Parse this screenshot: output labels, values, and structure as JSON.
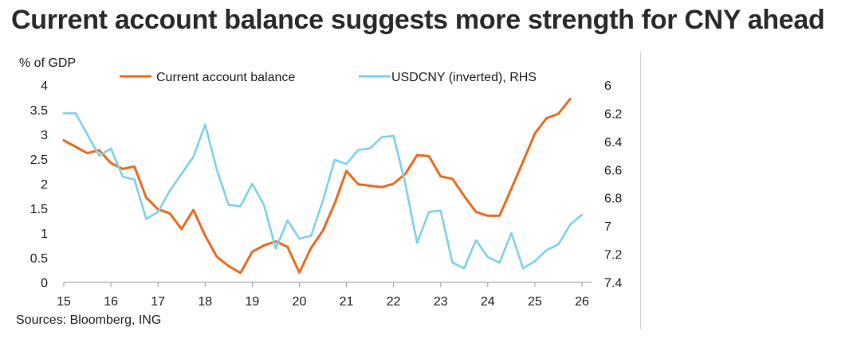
{
  "chart_data": {
    "type": "line",
    "title": "Current account balance suggests more strength for CNY ahead",
    "source": "Sources: Bloomberg, ING",
    "ylabel": "% of GDP",
    "xlim": [
      15,
      26
    ],
    "ylim": [
      0,
      4
    ],
    "y2lim": [
      6,
      7.4
    ],
    "y2_inverted": true,
    "x_ticks": [
      "15",
      "16",
      "17",
      "18",
      "19",
      "20",
      "21",
      "22",
      "23",
      "24",
      "25",
      "26"
    ],
    "y_ticks": [
      "0",
      "0.5",
      "1",
      "1.5",
      "2",
      "2.5",
      "3",
      "3.5",
      "4"
    ],
    "y2_ticks": [
      "6",
      "6.2",
      "6.4",
      "6.6",
      "6.8",
      "7",
      "7.2",
      "7.4"
    ],
    "colors": {
      "current_account": "#ee6a1f",
      "usdcny": "#7fd0ee"
    },
    "series": [
      {
        "name": "Current account balance",
        "axis": "left",
        "x": [
          15.0,
          15.25,
          15.5,
          15.75,
          16.0,
          16.25,
          16.5,
          16.75,
          17.0,
          17.25,
          17.5,
          17.75,
          18.0,
          18.25,
          18.5,
          18.75,
          19.0,
          19.25,
          19.5,
          19.75,
          20.0,
          20.25,
          20.5,
          20.75,
          21.0,
          21.25,
          21.5,
          21.75,
          22.0,
          22.25,
          22.5,
          22.75,
          23.0,
          23.25,
          23.5,
          23.75,
          24.0,
          24.25,
          24.5,
          24.75,
          25.0,
          25.25,
          25.5,
          25.75
        ],
        "values": [
          2.88,
          2.75,
          2.62,
          2.68,
          2.42,
          2.3,
          2.35,
          1.72,
          1.48,
          1.4,
          1.08,
          1.47,
          0.95,
          0.52,
          0.33,
          0.19,
          0.62,
          0.75,
          0.83,
          0.72,
          0.2,
          0.7,
          1.05,
          1.6,
          2.26,
          1.99,
          1.96,
          1.93,
          2.0,
          2.2,
          2.58,
          2.56,
          2.15,
          2.1,
          1.75,
          1.43,
          1.35,
          1.35,
          1.9,
          2.45,
          3.02,
          3.33,
          3.42,
          3.72
        ]
      },
      {
        "name": "USDCNY (inverted), RHS",
        "axis": "right",
        "x": [
          15.0,
          15.25,
          15.5,
          15.75,
          16.0,
          16.25,
          16.5,
          16.75,
          17.0,
          17.25,
          17.5,
          17.75,
          18.0,
          18.25,
          18.5,
          18.75,
          19.0,
          19.25,
          19.5,
          19.75,
          20.0,
          20.25,
          20.5,
          20.75,
          21.0,
          21.25,
          21.5,
          21.75,
          22.0,
          22.25,
          22.5,
          22.75,
          23.0,
          23.25,
          23.5,
          23.75,
          24.0,
          24.25,
          24.5,
          24.75,
          25.0,
          25.25,
          25.5,
          25.75,
          26.0
        ],
        "values": [
          6.2,
          6.2,
          6.35,
          6.5,
          6.45,
          6.65,
          6.67,
          6.95,
          6.9,
          6.75,
          6.63,
          6.51,
          6.28,
          6.6,
          6.85,
          6.86,
          6.7,
          6.85,
          7.16,
          6.96,
          7.09,
          7.07,
          6.82,
          6.53,
          6.56,
          6.46,
          6.45,
          6.37,
          6.36,
          6.7,
          7.12,
          6.9,
          6.89,
          7.26,
          7.3,
          7.1,
          7.22,
          7.26,
          7.05,
          7.3,
          7.25,
          7.17,
          7.13,
          6.99,
          6.92
        ]
      }
    ]
  }
}
